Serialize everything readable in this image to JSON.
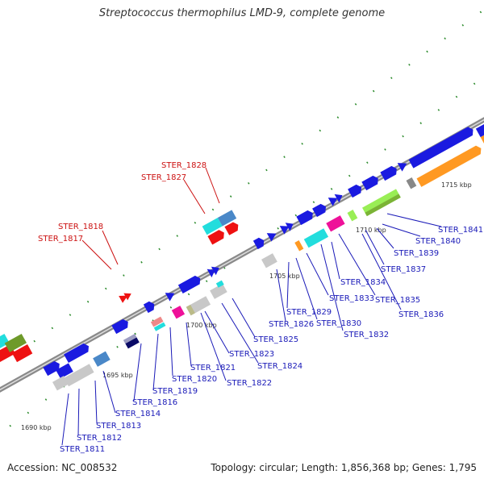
{
  "title": "Streptococcus thermophilus LMD-9, complete genome",
  "footer": {
    "accession": "Accession: NC_008532",
    "summary": "Topology: circular; Length: 1,856,368 bp; Genes: 1,795"
  },
  "colors": {
    "backbone": "#8a8a8a",
    "tick": "#2a8a2a",
    "label_blue": "#1a1ab8",
    "label_red": "#cc1111",
    "gene_blue": "#1a1ae0",
    "gene_red": "#ee1111",
    "gene_cyan": "#22dddd",
    "gene_steel": "#4a88c8",
    "gene_gray": "#c8c8c8",
    "gene_pink": "#ee1199",
    "gene_olive": "#6e9a2a",
    "gene_lightgreen": "#99ee55",
    "gene_orange": "#ff9922",
    "gene_navy": "#0a0a66",
    "gene_khaki": "#bbbb88",
    "gene_salmon": "#ee8888"
  },
  "kbp_labels": [
    "1690 kbp",
    "1695 kbp",
    "1700 kbp",
    "1705 kbp",
    "1710 kbp",
    "1715 kbp"
  ],
  "blue_labels": [
    "STER_1811",
    "STER_1812",
    "STER_1813",
    "STER_1814",
    "STER_1816",
    "STER_1819",
    "STER_1820",
    "STER_1821",
    "STER_1822",
    "STER_1823",
    "STER_1824",
    "STER_1825",
    "STER_1826",
    "STER_1829",
    "STER_1830",
    "STER_1832",
    "STER_1833",
    "STER_1834",
    "STER_1835",
    "STER_1836",
    "STER_1837",
    "STER_1839",
    "STER_1840",
    "STER_1841"
  ],
  "red_labels": [
    "STER_1817",
    "STER_1818",
    "STER_1827",
    "STER_1828"
  ]
}
